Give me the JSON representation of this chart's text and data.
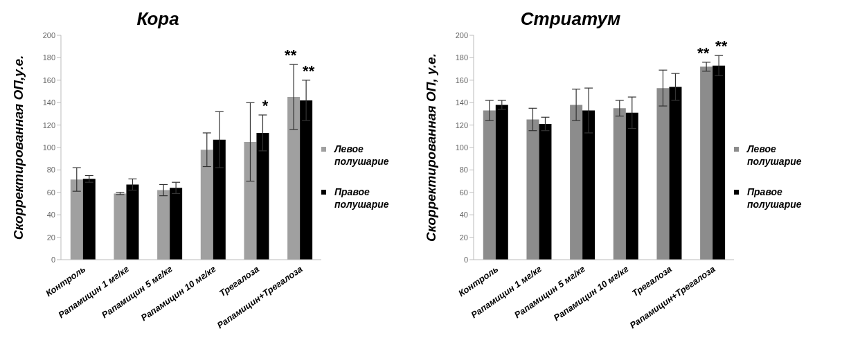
{
  "chart_data": [
    {
      "type": "bar",
      "title": "Кора",
      "ylabel": "Скорректированная ОП,у.е.",
      "categories": [
        "Контроль",
        "Рапамицин 1 мг/кг",
        "Рапамицин 5 мг/кг",
        "Рапамицин 10 мг/кг",
        "Трегалоза",
        "Рапамицин+Трегалоза"
      ],
      "series": [
        {
          "name": "Левое полушарие",
          "color": "#a0a0a0",
          "values": [
            71.5,
            59,
            62,
            98,
            105,
            145
          ],
          "errors": [
            10.5,
            1,
            5,
            15,
            35,
            29
          ]
        },
        {
          "name": "Правое полушарие",
          "color": "#000000",
          "values": [
            72,
            67,
            64,
            107,
            113,
            142
          ],
          "errors": [
            3,
            5,
            5,
            25,
            16,
            18
          ]
        }
      ],
      "ylim": [
        0,
        200
      ],
      "yticks": [
        0,
        20,
        40,
        60,
        80,
        100,
        120,
        140,
        160,
        180,
        200
      ],
      "grid": false,
      "legend": "right",
      "annotations": [
        {
          "text": "**",
          "x": "Рапамицин+Трегалоза",
          "y": 145
        },
        {
          "text": "**",
          "x": "Рапамицин+Трегалоза",
          "y": 142
        },
        {
          "text": "*",
          "x": "Трегалоза",
          "y": 113
        }
      ]
    },
    {
      "type": "bar",
      "title": "Стриатум",
      "ylabel": "Скорректированная ОП, у.е.",
      "categories": [
        "Контроль",
        "Рапамицин 1 мг/кг",
        "Рапамицин 5 мг/кг",
        "Рапамицин 10 мг/кг",
        "Трегалоза",
        "Рапамицин+Трегалоза"
      ],
      "series": [
        {
          "name": "Левое полушарие",
          "color": "#8c8c8c",
          "values": [
            133,
            125,
            138,
            135,
            153,
            172
          ],
          "errors": [
            9,
            10,
            14,
            7,
            16,
            4
          ]
        },
        {
          "name": "Правое полушарие",
          "color": "#000000",
          "values": [
            138,
            121,
            133,
            131,
            154,
            173
          ],
          "errors": [
            4,
            6,
            20,
            14,
            12,
            9
          ]
        }
      ],
      "ylim": [
        0,
        200
      ],
      "yticks": [
        0,
        20,
        40,
        60,
        80,
        100,
        120,
        140,
        160,
        180,
        200
      ],
      "grid": false,
      "legend": "right",
      "annotations": [
        {
          "text": "**",
          "x": "Рапамицин+Трегалоза",
          "y": 172
        },
        {
          "text": "**",
          "x": "Рапамицин+Трегалоза",
          "y": 173
        }
      ]
    }
  ]
}
